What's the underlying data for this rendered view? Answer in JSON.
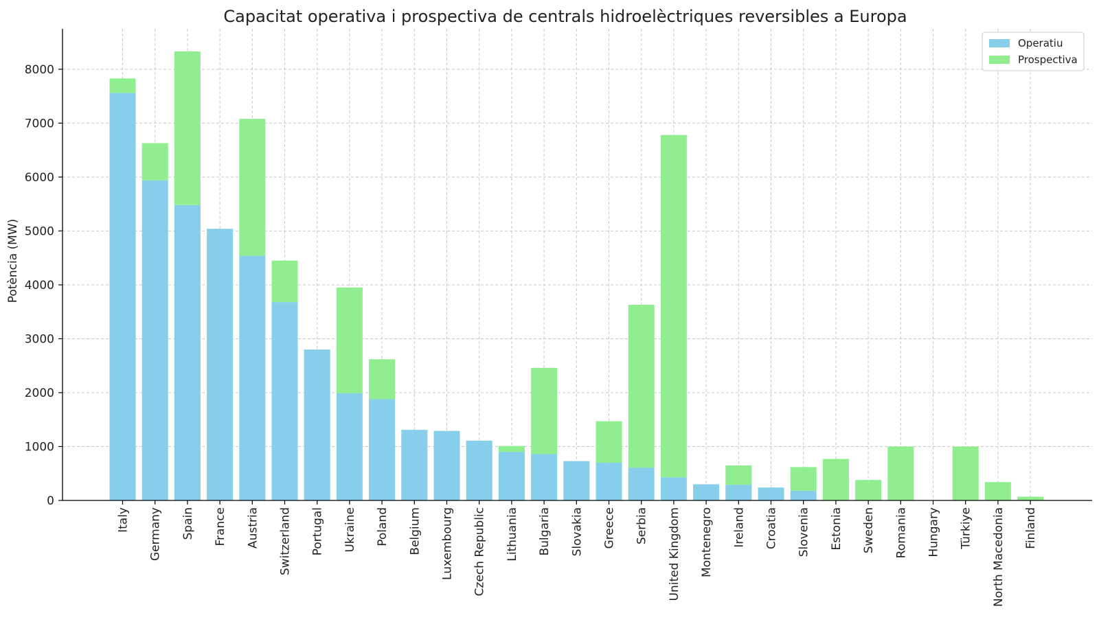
{
  "chart_data": {
    "type": "bar",
    "stacked": true,
    "title": "Capacitat operativa i prospectiva de centrals hidroelèctriques reversibles a Europa",
    "xlabel": "",
    "ylabel": "Potència (MW)",
    "ylim": [
      0,
      8750
    ],
    "yticks": [
      0,
      1000,
      2000,
      3000,
      4000,
      5000,
      6000,
      7000,
      8000
    ],
    "grid": true,
    "legend_position": "top-right",
    "categories": [
      "Italy",
      "Germany",
      "Spain",
      "France",
      "Austria",
      "Switzerland",
      "Portugal",
      "Ukraine",
      "Poland",
      "Belgium",
      "Luxembourg",
      "Czech Republic",
      "Lithuania",
      "Bulgaria",
      "Slovakia",
      "Greece",
      "Serbia",
      "United Kingdom",
      "Montenegro",
      "Ireland",
      "Croatia",
      "Slovenia",
      "Estonia",
      "Sweden",
      "Romania",
      "Hungary",
      "Türkiye",
      "North Macedonia",
      "Finland"
    ],
    "series": [
      {
        "name": "Operatiu",
        "color": "#87ceeb",
        "values": [
          7560,
          5940,
          5480,
          5040,
          4540,
          3680,
          2800,
          1990,
          1880,
          1310,
          1290,
          1110,
          900,
          860,
          730,
          700,
          610,
          430,
          300,
          290,
          240,
          180,
          0,
          0,
          0,
          0,
          0,
          0,
          0
        ]
      },
      {
        "name": "Prospectiva",
        "color": "#90ee90",
        "values": [
          270,
          690,
          2850,
          0,
          2540,
          770,
          0,
          1960,
          740,
          0,
          0,
          0,
          110,
          1600,
          0,
          770,
          3020,
          6350,
          0,
          360,
          0,
          440,
          770,
          380,
          1000,
          0,
          1000,
          340,
          70
        ]
      }
    ]
  }
}
